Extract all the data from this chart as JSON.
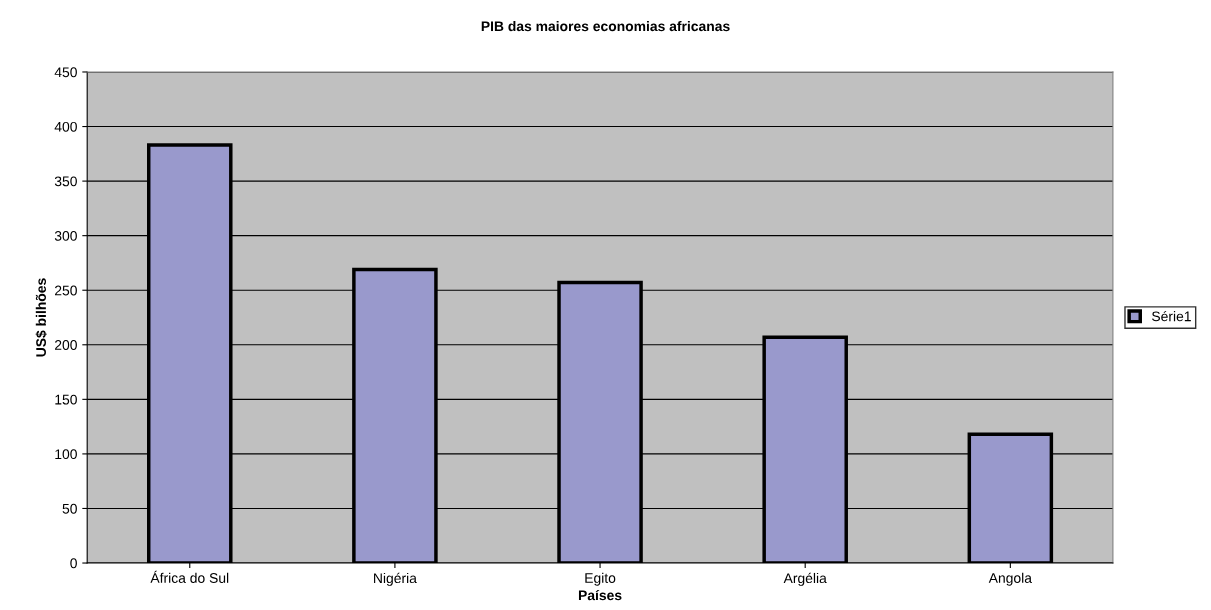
{
  "chart_data": {
    "type": "bar",
    "title": "PIB das maiores economias africanas",
    "xlabel": "Países",
    "ylabel": "US$ bilhões",
    "categories": [
      "África do Sul",
      "Nigéria",
      "Egito",
      "Argélia",
      "Angola"
    ],
    "series": [
      {
        "name": "Série1",
        "color": "#9999cc",
        "values": [
          383,
          269,
          257,
          207,
          118
        ]
      }
    ],
    "ylim": [
      0,
      450
    ],
    "yticks": [
      0,
      50,
      100,
      150,
      200,
      250,
      300,
      350,
      400,
      450
    ],
    "grid": "y",
    "legend": "right"
  }
}
